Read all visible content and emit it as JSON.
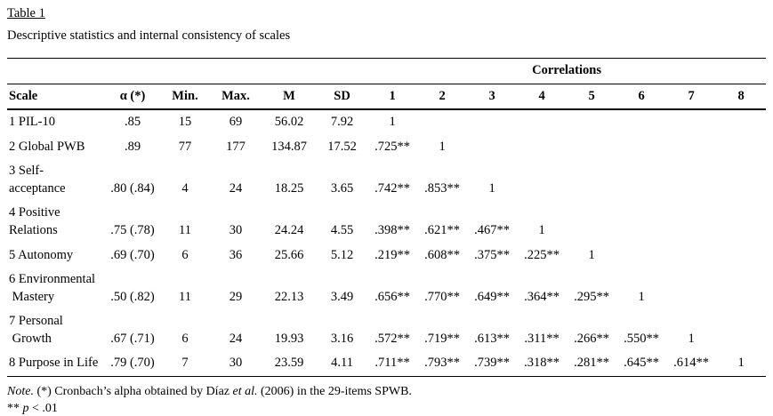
{
  "title": "Table 1",
  "subtitle": "Descriptive statistics and internal consistency of scales",
  "table": {
    "group_header": "Correlations",
    "columns": [
      "Scale",
      "α (*)",
      "Min.",
      "Max.",
      "M",
      "SD",
      "1",
      "2",
      "3",
      "4",
      "5",
      "6",
      "7",
      "8"
    ],
    "rows": [
      [
        "1 PIL-10",
        ".85",
        "15",
        "69",
        "56.02",
        "7.92",
        "1",
        "",
        "",
        "",
        "",
        "",
        "",
        ""
      ],
      [
        "2 Global PWB",
        ".89",
        "77",
        "177",
        "134.87",
        "17.52",
        ".725**",
        "1",
        "",
        "",
        "",
        "",
        "",
        ""
      ],
      [
        "3 Self-\nacceptance",
        ".80 (.84)",
        "4",
        "24",
        "18.25",
        "3.65",
        ".742**",
        ".853**",
        "1",
        "",
        "",
        "",
        "",
        ""
      ],
      [
        "4 Positive\nRelations",
        ".75 (.78)",
        "11",
        "30",
        "24.24",
        "4.55",
        ".398**",
        ".621**",
        ".467**",
        "1",
        "",
        "",
        "",
        ""
      ],
      [
        "5 Autonomy",
        ".69 (.70)",
        "6",
        "36",
        "25.66",
        "5.12",
        ".219**",
        ".608**",
        ".375**",
        ".225**",
        "1",
        "",
        "",
        ""
      ],
      [
        "6 Environmental\n Mastery",
        ".50 (.82)",
        "11",
        "29",
        "22.13",
        "3.49",
        ".656**",
        ".770**",
        ".649**",
        ".364**",
        ".295**",
        "1",
        "",
        ""
      ],
      [
        "7 Personal\n Growth",
        ".67 (.71)",
        "6",
        "24",
        "19.93",
        "3.16",
        ".572**",
        ".719**",
        ".613**",
        ".311**",
        ".266**",
        ".550**",
        "1",
        ""
      ],
      [
        "8 Purpose in Life",
        ".79 (.70)",
        "7",
        "30",
        "23.59",
        "4.11",
        ".711**",
        ".793**",
        ".739**",
        ".318**",
        ".281**",
        ".645**",
        ".614**",
        "1"
      ]
    ]
  },
  "notes": {
    "note_label": "Note.",
    "note_text_1": " (*) Cronbach’s alpha obtained by Díaz ",
    "note_etal": "et al.",
    "note_text_2": " (2006) in the 29-items SPWB.",
    "sig_prefix": "** ",
    "sig_p": "p",
    "sig_suffix": " < .01"
  }
}
